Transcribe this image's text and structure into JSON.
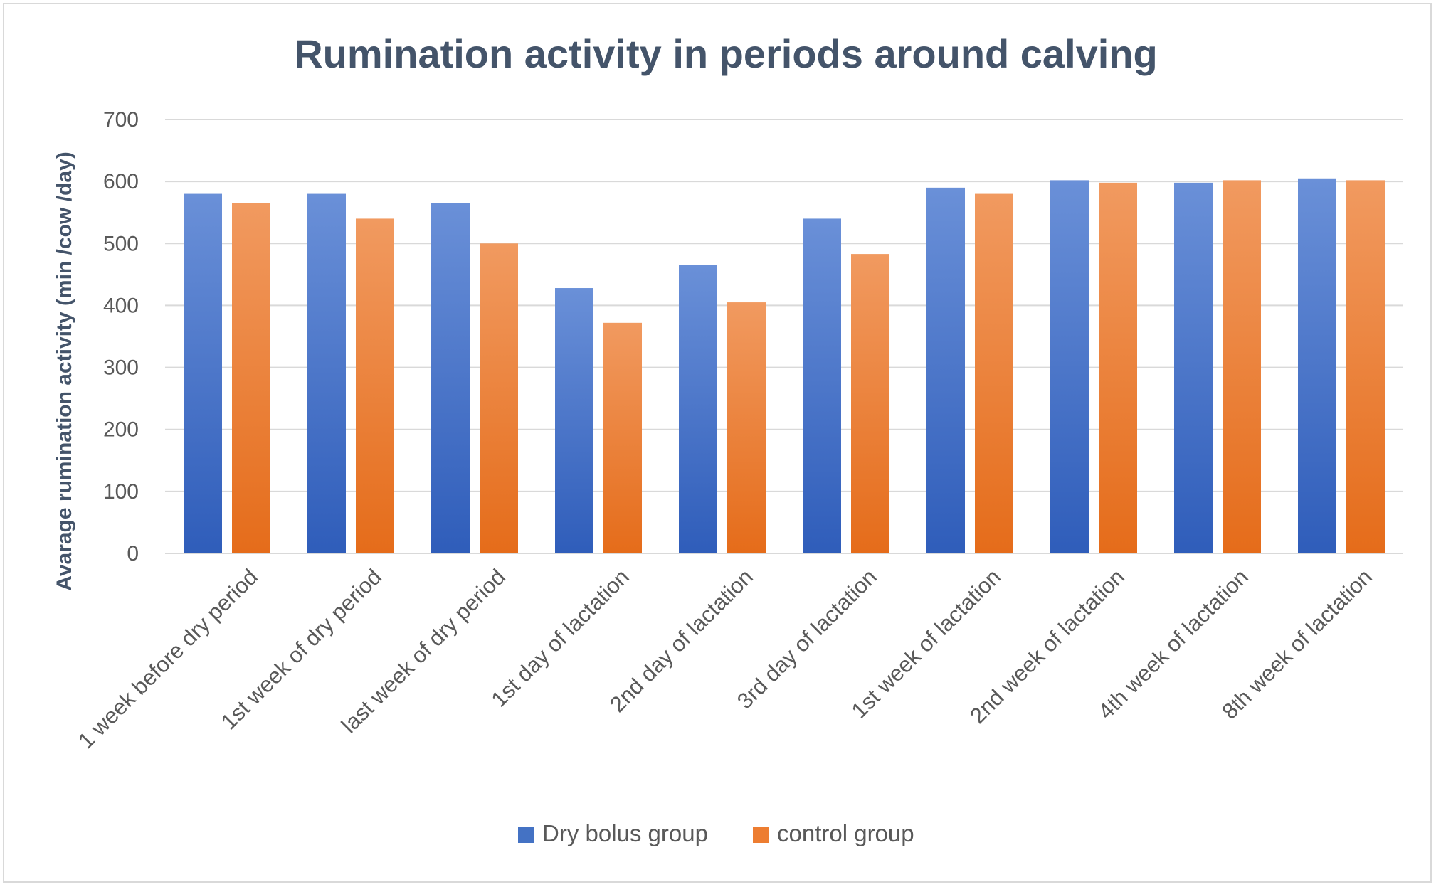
{
  "chart_data": {
    "type": "bar",
    "title": "Rumination activity in periods around calving",
    "xlabel": "",
    "ylabel": "Avarage rumination activity (min /cow /day)",
    "ylim": [
      0,
      700
    ],
    "yticks": [
      "0",
      "100",
      "200",
      "300",
      "400",
      "500",
      "600",
      "700"
    ],
    "grid": true,
    "legend_position": "bottom",
    "categories": [
      "1 week before dry period",
      "1st week of dry period",
      "last week of dry period",
      "1st day of lactation",
      "2nd day of lactation",
      "3rd day of lactation",
      "1st week of lactation",
      "2nd week of lactation",
      "4th week of lactation",
      "8th week of lactation"
    ],
    "series": [
      {
        "name": "Dry bolus group",
        "color": "#4472c4",
        "values": [
          580,
          580,
          565,
          428,
          465,
          540,
          590,
          602,
          598,
          605
        ]
      },
      {
        "name": "control group",
        "color": "#ed7d31",
        "values": [
          565,
          540,
          500,
          372,
          405,
          483,
          580,
          598,
          602,
          602
        ]
      }
    ]
  }
}
